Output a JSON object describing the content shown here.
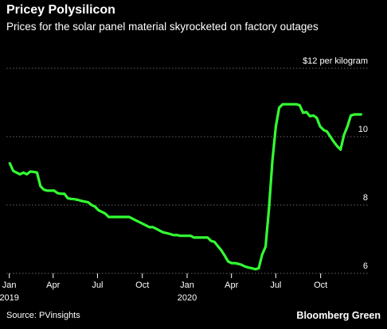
{
  "header": {
    "title": "Pricey Polysilicon",
    "subtitle": "Prices for the solar panel material skyrocketed on factory outages"
  },
  "footer": {
    "source": "Source: PVinsights",
    "brand": "Bloomberg Green"
  },
  "colors": {
    "background": "#000000",
    "line": "#33ff33",
    "grid": "#666666",
    "text": "#ffffff"
  },
  "chart_data": {
    "type": "line",
    "title": "Pricey Polysilicon",
    "subtitle": "Prices for the solar panel material skyrocketed on factory outages",
    "xlabel": "",
    "ylabel": "",
    "unit_label": "$12 per kilogram",
    "ylim": [
      6,
      12
    ],
    "y_ticks": [
      {
        "value": 6,
        "label": "6"
      },
      {
        "value": 8,
        "label": "8"
      },
      {
        "value": 10,
        "label": "10"
      },
      {
        "value": 12,
        "label": "$12 per kilogram"
      }
    ],
    "xlim": [
      "2018-12-26",
      "2021-01-06"
    ],
    "x_ticks": [
      {
        "date": "2019-01-01",
        "label": "Jan",
        "sublabel": "2019"
      },
      {
        "date": "2019-04-01",
        "label": "Apr",
        "sublabel": ""
      },
      {
        "date": "2019-07-01",
        "label": "Jul",
        "sublabel": ""
      },
      {
        "date": "2019-10-01",
        "label": "Oct",
        "sublabel": ""
      },
      {
        "date": "2020-01-01",
        "label": "Jan",
        "sublabel": "2020"
      },
      {
        "date": "2020-04-01",
        "label": "Apr",
        "sublabel": ""
      },
      {
        "date": "2020-07-01",
        "label": "Jul",
        "sublabel": ""
      },
      {
        "date": "2020-10-01",
        "label": "Oct",
        "sublabel": ""
      }
    ],
    "grid": "horizontal dotted",
    "legend": "none",
    "series": [
      {
        "x": [
          "2019-01-02",
          "2019-01-09",
          "2019-01-16",
          "2019-01-23",
          "2019-01-30",
          "2019-02-06",
          "2019-02-13",
          "2019-02-20",
          "2019-02-27",
          "2019-03-06",
          "2019-03-13",
          "2019-03-20",
          "2019-03-27",
          "2019-04-03",
          "2019-04-10",
          "2019-04-17",
          "2019-04-24",
          "2019-05-01",
          "2019-05-08",
          "2019-05-15",
          "2019-05-22",
          "2019-05-29",
          "2019-06-05",
          "2019-06-12",
          "2019-06-19",
          "2019-06-26",
          "2019-07-03",
          "2019-07-10",
          "2019-07-17",
          "2019-07-24",
          "2019-07-31",
          "2019-08-07",
          "2019-08-14",
          "2019-08-21",
          "2019-08-28",
          "2019-09-04",
          "2019-09-11",
          "2019-09-18",
          "2019-09-25",
          "2019-10-02",
          "2019-10-09",
          "2019-10-16",
          "2019-10-23",
          "2019-10-30",
          "2019-11-06",
          "2019-11-13",
          "2019-11-20",
          "2019-11-27",
          "2019-12-04",
          "2019-12-11",
          "2019-12-18",
          "2019-12-25",
          "2020-01-01",
          "2020-01-08",
          "2020-01-15",
          "2020-01-22",
          "2020-01-29",
          "2020-02-05",
          "2020-02-12",
          "2020-02-19",
          "2020-02-26",
          "2020-03-04",
          "2020-03-11",
          "2020-03-18",
          "2020-03-25",
          "2020-04-01",
          "2020-04-08",
          "2020-04-15",
          "2020-04-22",
          "2020-04-29",
          "2020-05-06",
          "2020-05-13",
          "2020-05-20",
          "2020-05-27",
          "2020-06-03",
          "2020-06-10",
          "2020-06-17",
          "2020-06-24",
          "2020-07-01",
          "2020-07-08",
          "2020-07-15",
          "2020-07-22",
          "2020-07-29",
          "2020-08-05",
          "2020-08-12",
          "2020-08-19",
          "2020-08-26",
          "2020-09-02",
          "2020-09-09",
          "2020-09-16",
          "2020-09-23",
          "2020-09-30",
          "2020-10-07",
          "2020-10-14",
          "2020-10-21",
          "2020-10-28",
          "2020-11-04",
          "2020-11-11",
          "2020-11-18",
          "2020-11-25",
          "2020-12-02",
          "2020-12-09",
          "2020-12-16",
          "2020-12-23"
        ],
        "values": [
          9.22,
          9.0,
          8.95,
          8.9,
          8.95,
          8.9,
          8.98,
          8.97,
          8.95,
          8.55,
          8.45,
          8.42,
          8.42,
          8.42,
          8.35,
          8.33,
          8.33,
          8.2,
          8.18,
          8.17,
          8.15,
          8.12,
          8.1,
          8.08,
          8.0,
          7.95,
          7.85,
          7.8,
          7.75,
          7.65,
          7.65,
          7.65,
          7.65,
          7.65,
          7.65,
          7.65,
          7.6,
          7.55,
          7.5,
          7.45,
          7.4,
          7.35,
          7.35,
          7.3,
          7.25,
          7.2,
          7.18,
          7.15,
          7.12,
          7.12,
          7.1,
          7.1,
          7.1,
          7.1,
          7.05,
          7.05,
          7.05,
          7.05,
          7.05,
          6.95,
          6.92,
          6.8,
          6.68,
          6.52,
          6.35,
          6.3,
          6.3,
          6.28,
          6.25,
          6.2,
          6.17,
          6.15,
          6.12,
          6.15,
          6.55,
          6.78,
          7.9,
          9.3,
          10.3,
          10.85,
          10.95,
          10.95,
          10.95,
          10.95,
          10.95,
          10.92,
          10.7,
          10.72,
          10.6,
          10.62,
          10.55,
          10.3,
          10.2,
          10.15,
          10.0,
          9.85,
          9.72,
          9.62,
          10.05,
          10.3,
          10.62,
          10.65,
          10.65,
          10.65
        ]
      }
    ]
  }
}
